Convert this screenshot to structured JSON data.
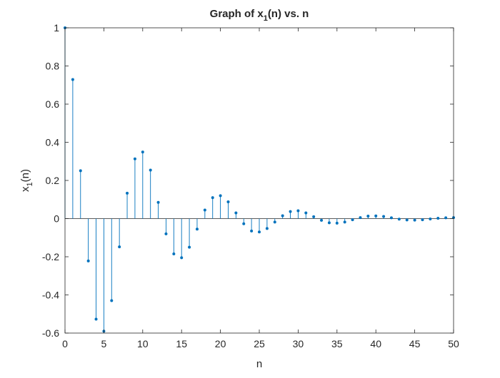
{
  "chart_data": {
    "type": "stem",
    "title": {
      "main": "Graph of x",
      "sub": "1",
      "rest": "(n) vs. n"
    },
    "xlabel": "n",
    "ylabel": {
      "main": "x",
      "sub": "1",
      "rest": "(n)"
    },
    "xlim": [
      0,
      50
    ],
    "ylim": [
      -0.6,
      1
    ],
    "xticks": [
      0,
      5,
      10,
      15,
      20,
      25,
      30,
      35,
      40,
      45,
      50
    ],
    "xtick_labels": [
      "0",
      "5",
      "10",
      "15",
      "20",
      "25",
      "30",
      "35",
      "40",
      "45",
      "50"
    ],
    "yticks": [
      -0.6,
      -0.4,
      -0.2,
      0,
      0.2,
      0.4,
      0.6,
      0.8,
      1
    ],
    "ytick_labels": [
      "-0.6",
      "-0.4",
      "-0.2",
      "0",
      "0.2",
      "0.4",
      "0.6",
      "0.8",
      "1"
    ],
    "grid": false,
    "series": [
      {
        "color": "#0072BD",
        "x": [
          0,
          1,
          2,
          3,
          4,
          5,
          6,
          7,
          8,
          9,
          10,
          11,
          12,
          13,
          14,
          15,
          16,
          17,
          18,
          19,
          20,
          21,
          22,
          23,
          24,
          25,
          26,
          27,
          28,
          29,
          30,
          31,
          32,
          33,
          34,
          35,
          36,
          37,
          38,
          39,
          40,
          41,
          42,
          43,
          44,
          45,
          46,
          47,
          48,
          49,
          50
        ],
        "y": [
          1.0,
          0.729,
          0.251,
          -0.222,
          -0.527,
          -0.59,
          -0.43,
          -0.148,
          0.133,
          0.313,
          0.349,
          0.254,
          0.085,
          -0.08,
          -0.185,
          -0.205,
          -0.15,
          -0.055,
          0.045,
          0.11,
          0.12,
          0.088,
          0.03,
          -0.027,
          -0.065,
          -0.07,
          -0.052,
          -0.018,
          0.015,
          0.037,
          0.041,
          0.03,
          0.01,
          -0.009,
          -0.022,
          -0.024,
          -0.018,
          -0.006,
          0.005,
          0.013,
          0.014,
          0.011,
          0.004,
          -0.003,
          -0.007,
          -0.008,
          -0.006,
          -0.002,
          0.002,
          0.004,
          0.005
        ]
      }
    ]
  }
}
